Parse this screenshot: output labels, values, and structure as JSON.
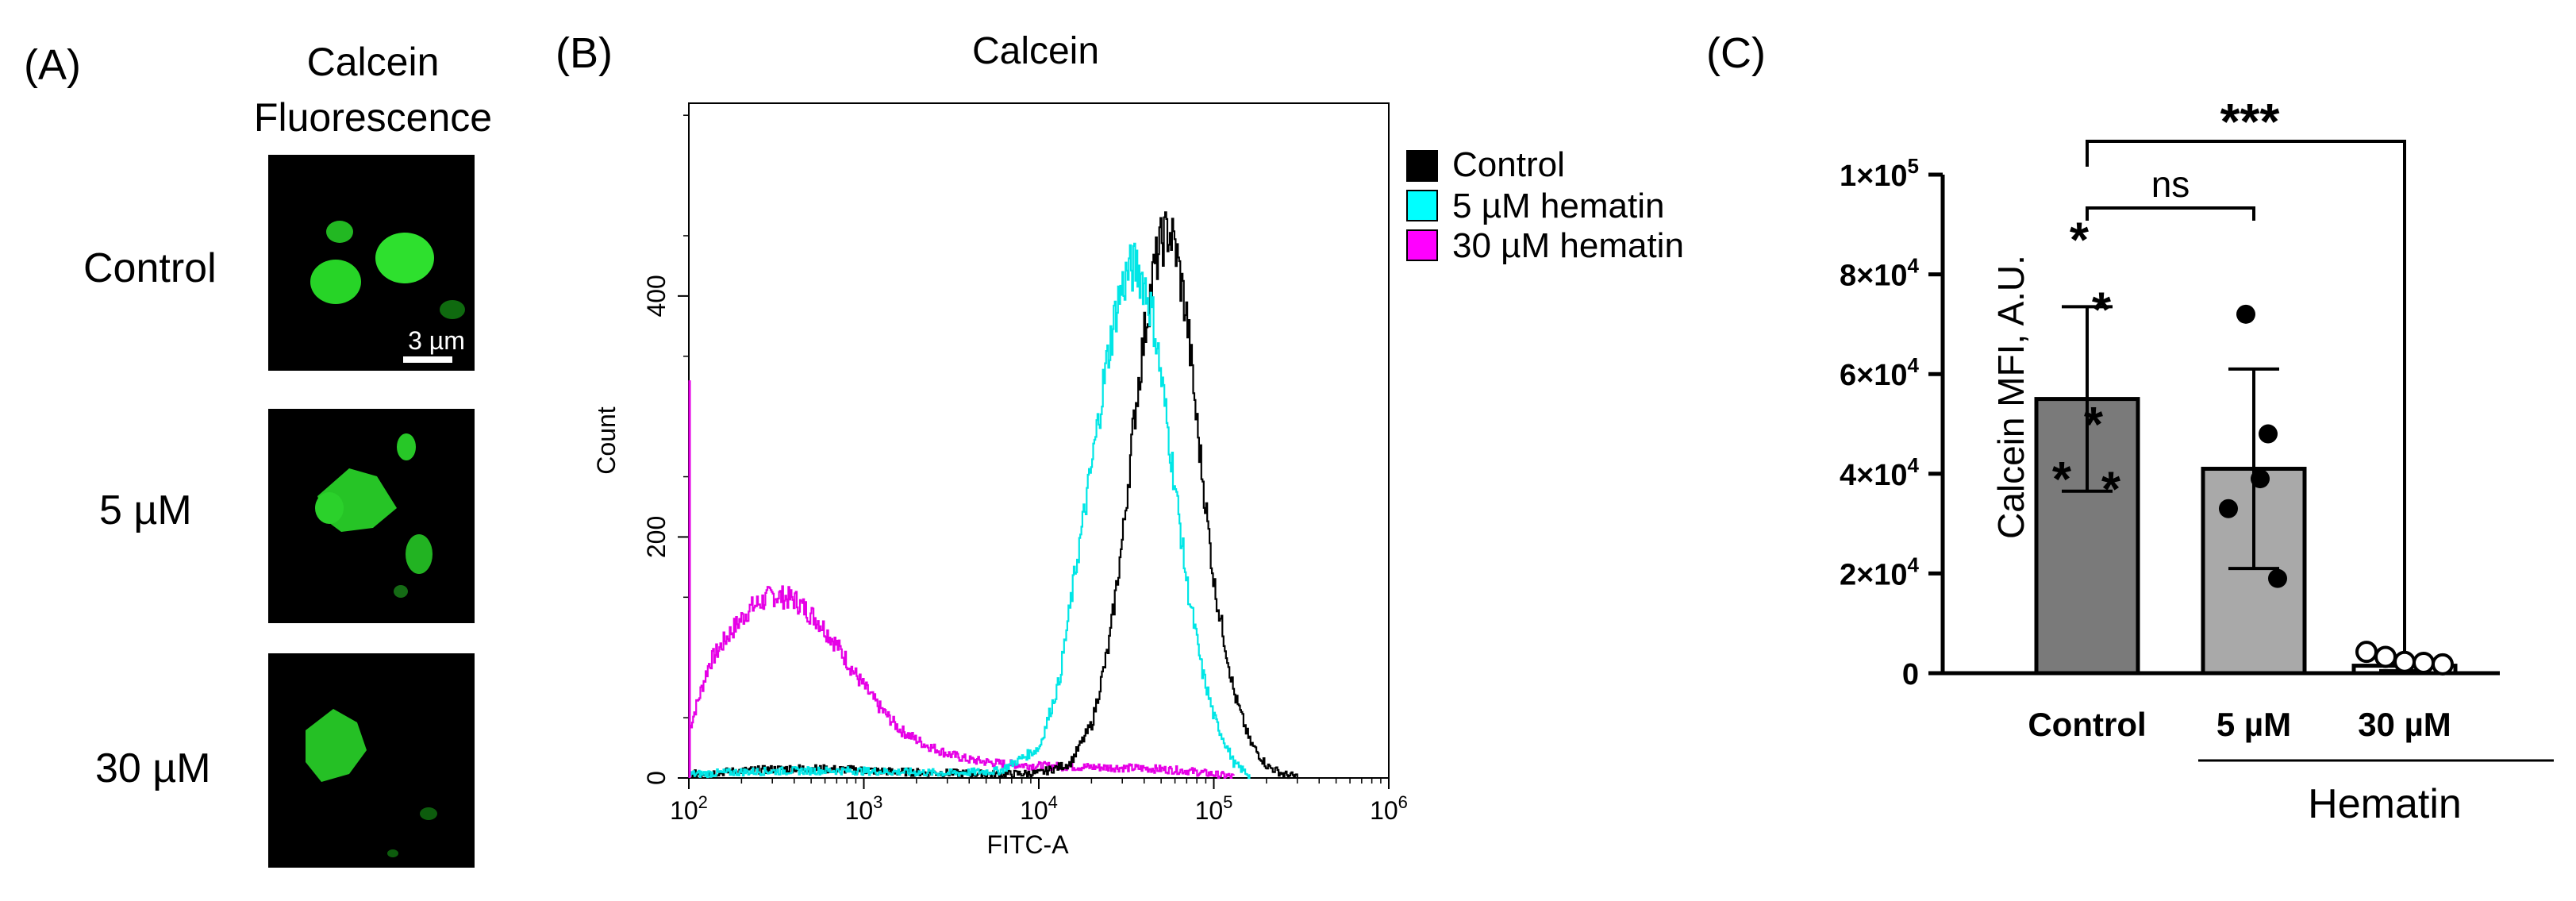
{
  "panel_a": {
    "label": "(A)",
    "header_line1": "Calcein",
    "header_line2": "Fluorescence",
    "rows": [
      "Control",
      "5 µM",
      "30 µM"
    ],
    "scale_bar_label": "3 µm",
    "image_color": "#2fd12f"
  },
  "panel_b": {
    "label": "(B)"
  },
  "panel_c": {
    "label": "(C)",
    "hematin_label": "Hematin"
  },
  "chart_data": [
    {
      "type": "line",
      "title": "Calcein",
      "xlabel": "FITC-A",
      "ylabel": "Count",
      "xscale": "log",
      "xlim": [
        100,
        1000000
      ],
      "ylim": [
        0,
        560
      ],
      "xtick_labels": [
        "10^2",
        "10^3",
        "10^4",
        "10^5",
        "10^6"
      ],
      "ytick_values": [
        0,
        200,
        400
      ],
      "ytick_labels": [
        "0",
        "200",
        "400"
      ],
      "legend": {
        "position": "top-right",
        "entries": [
          "Control",
          "5 µM hematin",
          "30 µM hematin"
        ]
      },
      "series": [
        {
          "name": "Control",
          "color": "#000000",
          "x": [
            100,
            200,
            400,
            800,
            1600,
            3200,
            6000,
            10000,
            15000,
            20000,
            25000,
            30000,
            35000,
            40000,
            45000,
            50000,
            55000,
            60000,
            70000,
            80000,
            100000,
            130000,
            160000,
            200000,
            250000,
            300000
          ],
          "y": [
            3,
            6,
            8,
            7,
            5,
            4,
            3,
            4,
            12,
            45,
            110,
            200,
            300,
            370,
            420,
            445,
            455,
            440,
            380,
            290,
            160,
            70,
            30,
            10,
            3,
            1
          ]
        },
        {
          "name": "5 µM hematin",
          "color": "#00e6e6",
          "x": [
            100,
            200,
            400,
            800,
            1600,
            3200,
            6000,
            10000,
            13000,
            16000,
            20000,
            24000,
            28000,
            32000,
            36000,
            40000,
            45000,
            50000,
            60000,
            70000,
            85000,
            100000,
            130000,
            160000
          ],
          "y": [
            3,
            5,
            6,
            6,
            5,
            4,
            6,
            25,
            80,
            170,
            260,
            340,
            395,
            420,
            425,
            410,
            380,
            330,
            240,
            160,
            90,
            50,
            12,
            2
          ]
        },
        {
          "name": "30 µM hematin",
          "color": "#e600e6",
          "x": [
            100,
            130,
            170,
            220,
            300,
            400,
            550,
            700,
            900,
            1200,
            1600,
            2200,
            3000,
            4000,
            6000,
            10000,
            20000,
            40000,
            70000,
            100000,
            130000
          ],
          "y": [
            40,
            95,
            120,
            140,
            152,
            148,
            130,
            110,
            85,
            60,
            40,
            28,
            20,
            15,
            12,
            10,
            9,
            8,
            6,
            3,
            1
          ]
        }
      ]
    },
    {
      "type": "bar",
      "categories": [
        "Control",
        "5 µM",
        "30 µM"
      ],
      "values": [
        55000,
        41000,
        1500
      ],
      "errors": [
        18500,
        20000,
        1000
      ],
      "bar_colors": [
        "#7a7a7a",
        "#a9a9a9",
        "#ffffff"
      ],
      "points": [
        [
          87000,
          73000,
          50000,
          39000,
          37000
        ],
        [
          72000,
          48000,
          39000,
          33000,
          19000
        ],
        [
          3000,
          2000,
          1000,
          800,
          500
        ]
      ],
      "ylabel": "Calcein MFI, A.U.",
      "ylim": [
        0,
        100000
      ],
      "ytick_values": [
        0,
        20000,
        40000,
        60000,
        80000,
        100000
      ],
      "ytick_labels": [
        {
          "mantissa": "0",
          "exp": ""
        },
        {
          "mantissa": "2×10",
          "exp": "4"
        },
        {
          "mantissa": "4×10",
          "exp": "4"
        },
        {
          "mantissa": "6×10",
          "exp": "4"
        },
        {
          "mantissa": "8×10",
          "exp": "4"
        },
        {
          "mantissa": "1×10",
          "exp": "5"
        }
      ],
      "annotations": [
        {
          "from": 0,
          "to": 1,
          "text": "ns"
        },
        {
          "from": 0,
          "to": 2,
          "text": "***"
        }
      ]
    }
  ]
}
